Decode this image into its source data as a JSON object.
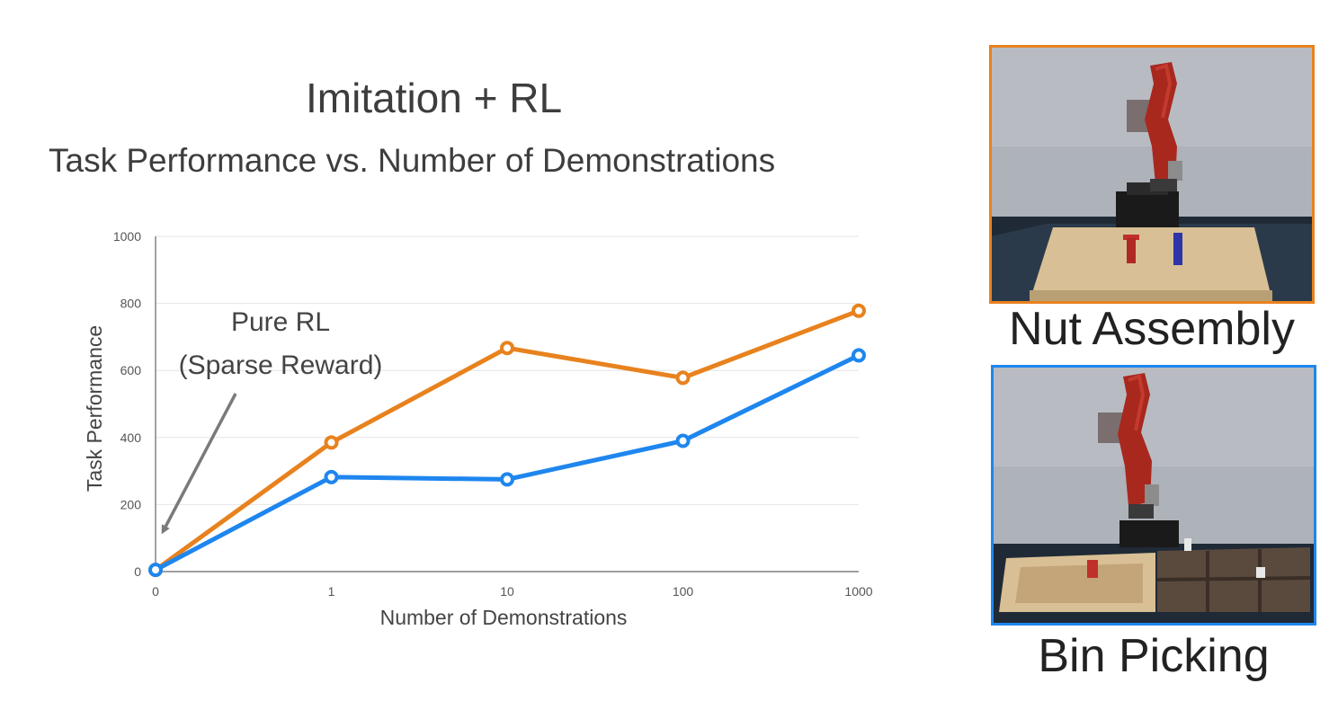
{
  "header": {
    "title": "Imitation + RL",
    "subtitle": "Task Performance vs. Number of Demonstrations"
  },
  "chart_data": {
    "type": "line",
    "categories": [
      "0",
      "1",
      "10",
      "100",
      "1000"
    ],
    "series": [
      {
        "name": "",
        "color": "#e8821e",
        "values": [
          5,
          385,
          667,
          578,
          778
        ]
      },
      {
        "name": "",
        "color": "#1e86ee",
        "values": [
          5,
          282,
          275,
          390,
          645
        ]
      }
    ],
    "ylim": [
      0,
      1000
    ],
    "yticks": [
      0,
      200,
      400,
      600,
      800,
      1000
    ],
    "xlabel": "Number of Demonstrations",
    "ylabel": "Task Performance",
    "grid": true,
    "annotation": {
      "lines": [
        "Pure RL",
        "(Sparse Reward)"
      ],
      "points_to": {
        "category": "0",
        "value": 0
      }
    }
  },
  "tasks": [
    {
      "name": "Nut Assembly",
      "border_color": "#e8821e"
    },
    {
      "name": "Bin Picking",
      "border_color": "#1e86ee"
    }
  ]
}
